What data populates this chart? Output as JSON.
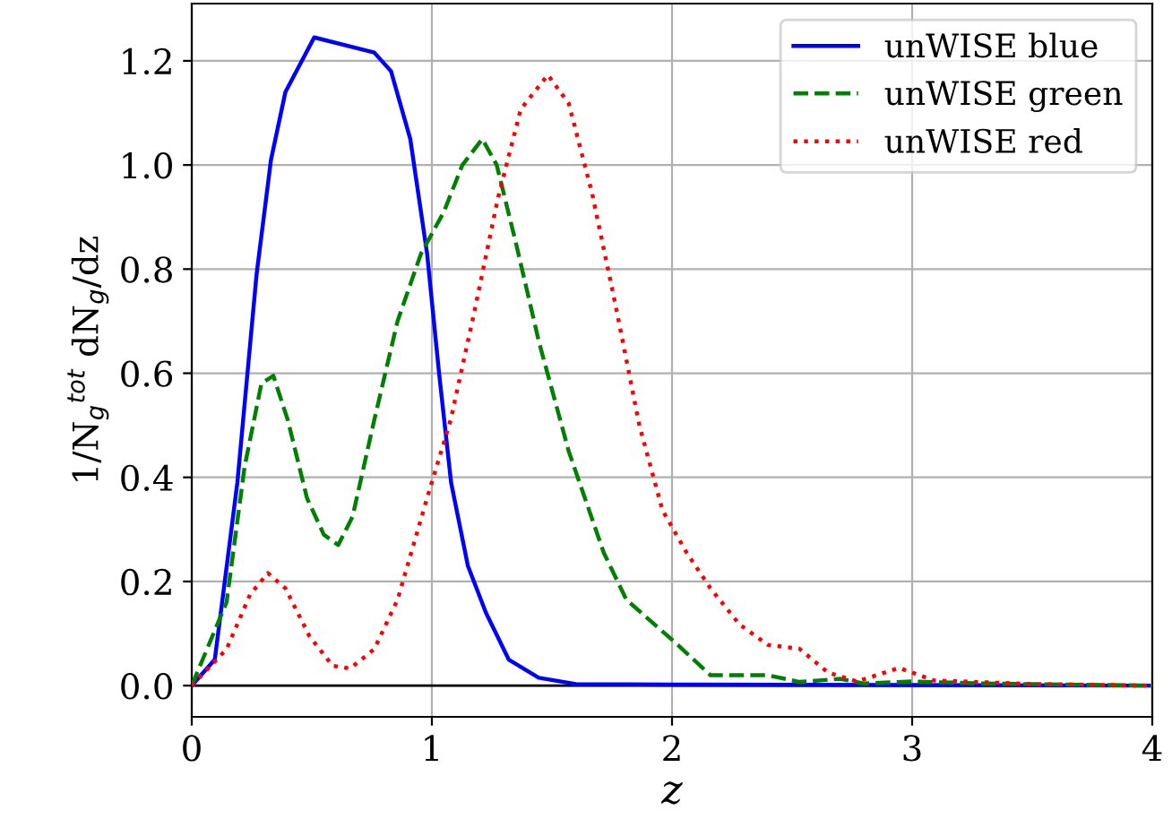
{
  "chart_data": {
    "type": "line",
    "xlabel": "z",
    "ylabel": "1/N$_{g}$$^{tot}$ dN$_{g}$/dz",
    "xlim": [
      0,
      4
    ],
    "ylim": [
      -0.06,
      1.31
    ],
    "xticks": [
      0,
      1,
      2,
      3,
      4
    ],
    "yticks": [
      {
        "value": 0,
        "label": "0.0"
      },
      {
        "value": 0.2,
        "label": "0.2"
      },
      {
        "value": 0.4,
        "label": "0.4"
      },
      {
        "value": 0.6,
        "label": "0.6"
      },
      {
        "value": 0.8,
        "label": "0.8"
      },
      {
        "value": 1.0,
        "label": "1.0"
      },
      {
        "value": 1.2,
        "label": "1.2"
      }
    ],
    "grid": true,
    "legend": "top right",
    "ref_lines": [
      {
        "axis": "y",
        "value": 0,
        "color": "#000000"
      }
    ],
    "series": [
      {
        "name": "unWISE blue",
        "color": "#0000ff",
        "line_style": "solid",
        "x": [
          0,
          0.096,
          0.19,
          0.27,
          0.33,
          0.39,
          0.51,
          0.76,
          0.83,
          0.91,
          0.98,
          1.03,
          1.08,
          1.15,
          1.225,
          1.32,
          1.445,
          1.6,
          2.0,
          3.0,
          4.0
        ],
        "values": [
          0,
          0.05,
          0.39,
          0.79,
          1.01,
          1.14,
          1.245,
          1.216,
          1.18,
          1.05,
          0.83,
          0.6,
          0.39,
          0.23,
          0.14,
          0.05,
          0.015,
          0.003,
          0.002,
          0.001,
          0
        ]
      },
      {
        "name": "unWISE green",
        "color": "#008000",
        "line_style": "dashed",
        "x": [
          0,
          0.145,
          0.22,
          0.29,
          0.34,
          0.4,
          0.48,
          0.55,
          0.61,
          0.67,
          0.76,
          0.857,
          0.955,
          1.05,
          1.127,
          1.21,
          1.27,
          1.35,
          1.446,
          1.57,
          1.716,
          1.81,
          2.01,
          2.16,
          2.4,
          2.53,
          2.7,
          2.8,
          3.0,
          3.3,
          4.0
        ],
        "values": [
          0,
          0.16,
          0.42,
          0.58,
          0.595,
          0.51,
          0.36,
          0.29,
          0.27,
          0.325,
          0.51,
          0.7,
          0.83,
          0.91,
          1.0,
          1.05,
          1.0,
          0.85,
          0.66,
          0.45,
          0.255,
          0.165,
          0.084,
          0.02,
          0.02,
          0.007,
          0.013,
          0.004,
          0.008,
          0.004,
          0
        ]
      },
      {
        "name": "unWISE red",
        "color": "#ff0000",
        "line_style": "dotted",
        "x": [
          0,
          0.145,
          0.243,
          0.317,
          0.39,
          0.49,
          0.587,
          0.66,
          0.76,
          0.857,
          0.98,
          1.078,
          1.176,
          1.274,
          1.37,
          1.483,
          1.57,
          1.667,
          1.766,
          1.864,
          1.96,
          2.06,
          2.16,
          2.28,
          2.4,
          2.53,
          2.65,
          2.77,
          2.945,
          3.09,
          3.5,
          4.0
        ],
        "values": [
          0,
          0.07,
          0.175,
          0.216,
          0.187,
          0.095,
          0.038,
          0.033,
          0.07,
          0.165,
          0.36,
          0.51,
          0.716,
          0.934,
          1.107,
          1.173,
          1.118,
          0.946,
          0.728,
          0.5,
          0.337,
          0.256,
          0.187,
          0.118,
          0.078,
          0.071,
          0.025,
          0.008,
          0.034,
          0.01,
          0.003,
          0
        ]
      }
    ]
  }
}
